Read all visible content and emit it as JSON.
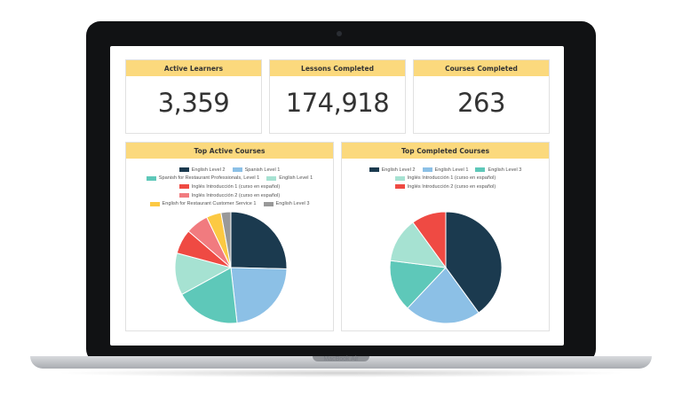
{
  "device": {
    "brand": "MacBook Air"
  },
  "kpis": [
    {
      "label": "Active Learners",
      "value": "3,359"
    },
    {
      "label": "Lessons Completed",
      "value": "174,918"
    },
    {
      "label": "Courses Completed",
      "value": "263"
    }
  ],
  "colors": {
    "header_accent": "#fbd97d",
    "navy": "#1b3a4f",
    "sky": "#8cc0e6",
    "teal": "#5ec8b9",
    "mint": "#a6e2d2",
    "red": "#ef4a43",
    "pink": "#f17b7f",
    "yellow": "#fcc943",
    "gray": "#999999"
  },
  "panels": {
    "active": {
      "title": "Top Active Courses",
      "legend_rows": [
        [
          {
            "label": "English Level 2",
            "color": "#1b3a4f"
          },
          {
            "label": "Spanish Level 1",
            "color": "#8cc0e6"
          }
        ],
        [
          {
            "label": "Spanish for Restaurant Professionals, Level 1",
            "color": "#5ec8b9"
          },
          {
            "label": "English Level 1",
            "color": "#a6e2d2"
          }
        ],
        [
          {
            "label": "Inglés Introducción 1 (curso en español)",
            "color": "#ef4a43"
          }
        ],
        [
          {
            "label": "Inglés Introducción 2 (curso en español)",
            "color": "#f17b7f"
          }
        ],
        [
          {
            "label": "English for Restaurant Customer Service 1",
            "color": "#fcc943"
          },
          {
            "label": "English Level 3",
            "color": "#999999"
          }
        ]
      ]
    },
    "completed": {
      "title": "Top Completed Courses",
      "legend_rows": [
        [
          {
            "label": "English Level 2",
            "color": "#1b3a4f"
          },
          {
            "label": "English Level 1",
            "color": "#8cc0e6"
          },
          {
            "label": "English Level 3",
            "color": "#5ec8b9"
          }
        ],
        [
          {
            "label": "Inglés Introducción 1 (curso en español)",
            "color": "#a6e2d2"
          }
        ],
        [
          {
            "label": "Inglés Introducción 2 (curso en español)",
            "color": "#ef4a43"
          }
        ]
      ]
    }
  },
  "chart_data": [
    {
      "type": "pie",
      "title": "Top Active Courses",
      "series": [
        {
          "name": "English Level 2",
          "value": 25.0
        },
        {
          "name": "Spanish Level 1",
          "value": 22.5
        },
        {
          "name": "Spanish for Restaurant Professionals, Level 1",
          "value": 18.5
        },
        {
          "name": "English Level 1",
          "value": 12.0
        },
        {
          "name": "Inglés Introducción 1 (curso en español)",
          "value": 7.0
        },
        {
          "name": "Inglés Introducción 2 (curso en español)",
          "value": 6.5
        },
        {
          "name": "English for Restaurant Customer Service 1",
          "value": 4.2
        },
        {
          "name": "English Level 3",
          "value": 2.8
        }
      ],
      "colors": [
        "#1b3a4f",
        "#8cc0e6",
        "#5ec8b9",
        "#a6e2d2",
        "#ef4a43",
        "#f17b7f",
        "#fcc943",
        "#999999"
      ]
    },
    {
      "type": "pie",
      "title": "Top Completed Courses",
      "series": [
        {
          "name": "English Level 2",
          "value": 40.0
        },
        {
          "name": "English Level 1",
          "value": 22.0
        },
        {
          "name": "English Level 3",
          "value": 15.0
        },
        {
          "name": "Inglés Introducción 1 (curso en español)",
          "value": 13.0
        },
        {
          "name": "Inglés Introducción 2 (curso en español)",
          "value": 10.0
        }
      ],
      "colors": [
        "#1b3a4f",
        "#8cc0e6",
        "#5ec8b9",
        "#a6e2d2",
        "#ef4a43"
      ]
    }
  ]
}
